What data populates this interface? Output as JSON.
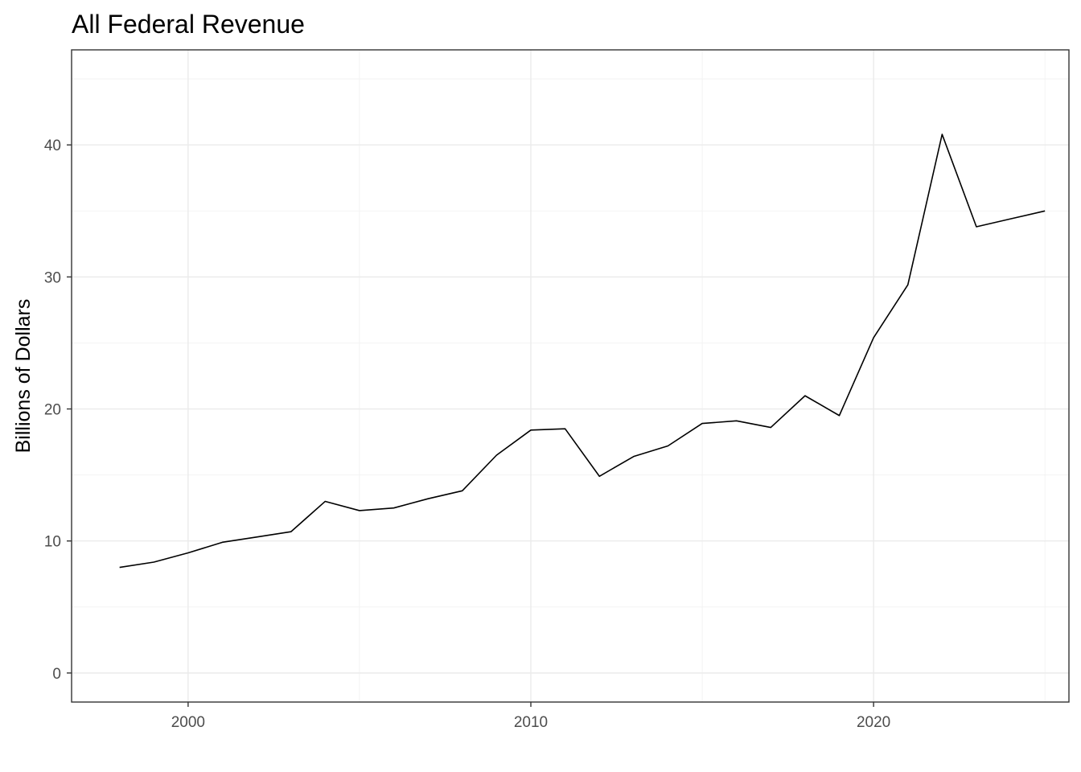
{
  "chart_data": {
    "type": "line",
    "title": "All Federal Revenue",
    "xlabel": "",
    "ylabel": "Billions of Dollars",
    "xlim": [
      1996.6,
      2025.7
    ],
    "ylim": [
      -2.2,
      47.2
    ],
    "x_ticks": [
      2000,
      2010,
      2020
    ],
    "x_tick_labels": [
      "2000",
      "2010",
      "2020"
    ],
    "y_ticks": [
      0,
      10,
      20,
      30,
      40
    ],
    "y_tick_labels": [
      "0",
      "10",
      "20",
      "30",
      "40"
    ],
    "x_minor_ticks": [
      2005,
      2015,
      2025
    ],
    "y_minor_ticks": [
      5,
      15,
      25,
      35,
      45
    ],
    "grid": true,
    "legend": "none",
    "line_color": "#000000",
    "series": [
      {
        "x": [
          1998,
          1999,
          2000,
          2001,
          2002,
          2003,
          2004,
          2005,
          2006,
          2007,
          2008,
          2009,
          2010,
          2011,
          2012,
          2013,
          2014,
          2015,
          2016,
          2017,
          2018,
          2019,
          2020,
          2021,
          2022,
          2023,
          2024,
          2025
        ],
        "values": [
          8.0,
          8.4,
          9.1,
          9.9,
          10.3,
          10.7,
          13.0,
          12.3,
          12.5,
          13.2,
          13.8,
          16.5,
          18.4,
          18.5,
          14.9,
          16.4,
          17.2,
          18.9,
          19.1,
          18.6,
          21.0,
          19.5,
          25.4,
          29.4,
          40.8,
          33.8,
          34.4,
          35.0
        ]
      }
    ]
  }
}
